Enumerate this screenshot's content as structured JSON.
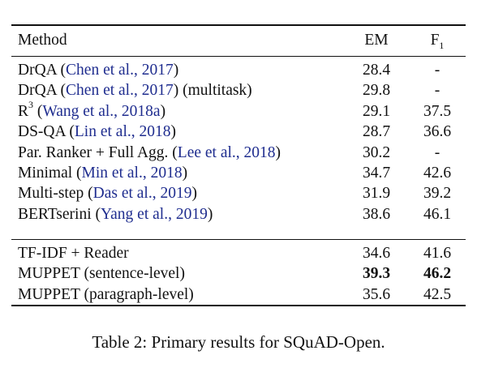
{
  "header": {
    "method": "Method",
    "em": "EM",
    "f1_base": "F",
    "f1_sub": "1"
  },
  "group1": [
    {
      "name": "DrQA ",
      "cite": "Chen et al., 2017",
      "suffix": "",
      "em": "28.4",
      "f1": "-"
    },
    {
      "name": "DrQA ",
      "cite": "Chen et al., 2017",
      "suffix": " (multitask)",
      "em": "29.8",
      "f1": "-"
    },
    {
      "name": "R",
      "sup": "3",
      "cite": "Wang et al., 2018a",
      "suffix": "",
      "em": "29.1",
      "f1": "37.5"
    },
    {
      "name": "DS-QA ",
      "cite": "Lin et al., 2018",
      "suffix": "",
      "em": "28.7",
      "f1": "36.6"
    },
    {
      "name": "Par. Ranker + Full Agg. ",
      "cite": "Lee et al., 2018",
      "suffix": "",
      "em": "30.2",
      "f1": "-"
    },
    {
      "name": "Minimal ",
      "cite": "Min et al., 2018",
      "suffix": "",
      "em": "34.7",
      "f1": "42.6"
    },
    {
      "name": "Multi-step ",
      "cite": "Das et al., 2019",
      "suffix": "",
      "em": "31.9",
      "f1": "39.2"
    },
    {
      "name": "BERTserini ",
      "cite": "Yang et al., 2019",
      "suffix": "",
      "em": "38.6",
      "f1": "46.1"
    }
  ],
  "group2": [
    {
      "name": "TF-IDF + Reader",
      "em": "34.6",
      "f1": "41.6",
      "bold": false
    },
    {
      "name": "MUPPET (sentence-level)",
      "em": "39.3",
      "f1": "46.2",
      "bold": true
    },
    {
      "name": "MUPPET (paragraph-level)",
      "em": "35.6",
      "f1": "42.5",
      "bold": false
    }
  ],
  "caption": "Table 2: Primary results for SQuAD-Open."
}
